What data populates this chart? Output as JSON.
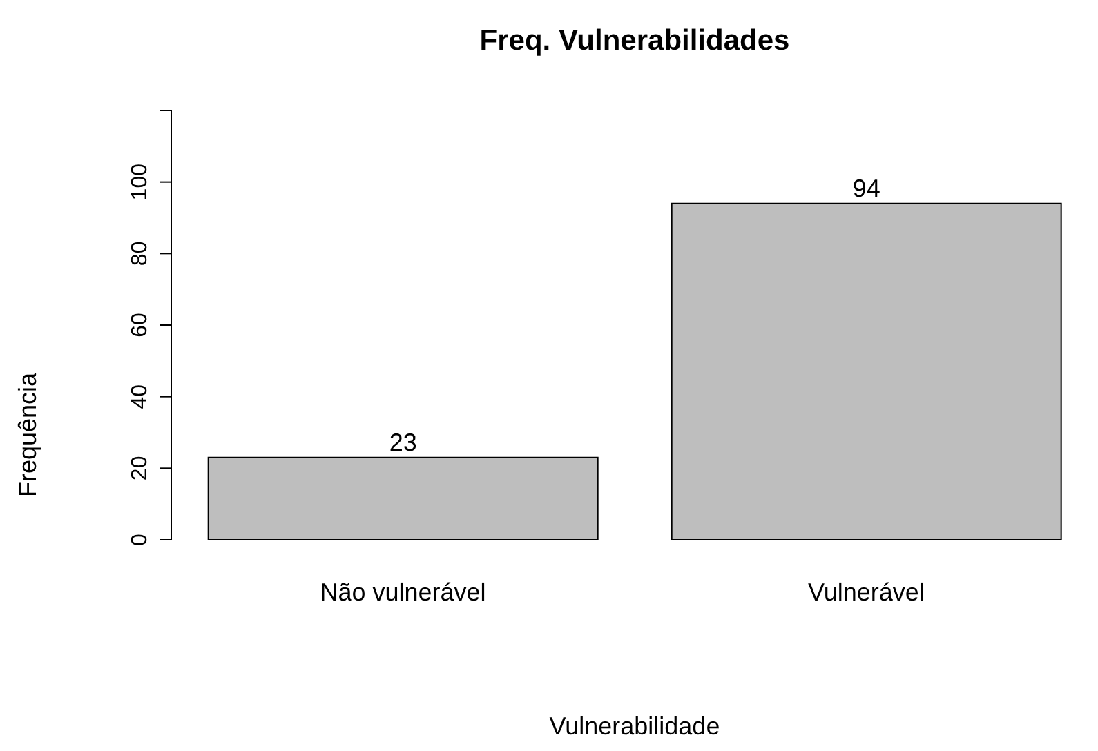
{
  "chart_data": {
    "type": "bar",
    "title": "Freq. Vulnerabilidades",
    "xlabel": "Vulnerabilidade",
    "ylabel": "Frequência",
    "categories": [
      "Não vulnerável",
      "Vulnerável"
    ],
    "values": [
      23,
      94
    ],
    "color": "#bebebe",
    "ylim": [
      0,
      120
    ],
    "yticks": [
      0,
      20,
      40,
      60,
      80,
      100,
      {
        "value": 120,
        "label": null
      }
    ],
    "data_labels": true,
    "grid": false,
    "legend": false
  }
}
